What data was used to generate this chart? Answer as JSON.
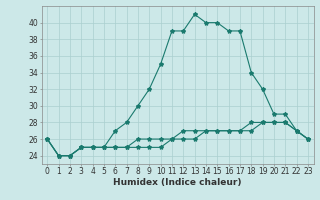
{
  "xlabel": "Humidex (Indice chaleur)",
  "x": [
    0,
    1,
    2,
    3,
    4,
    5,
    6,
    7,
    8,
    9,
    10,
    11,
    12,
    13,
    14,
    15,
    16,
    17,
    18,
    19,
    20,
    21,
    22,
    23
  ],
  "line1": [
    26,
    24,
    24,
    25,
    25,
    25,
    27,
    28,
    30,
    32,
    35,
    39,
    39,
    41,
    40,
    40,
    39,
    39,
    34,
    32,
    29,
    29,
    27,
    26
  ],
  "line2": [
    26,
    24,
    24,
    25,
    25,
    25,
    25,
    25,
    26,
    26,
    26,
    26,
    27,
    27,
    27,
    27,
    27,
    27,
    28,
    28,
    28,
    28,
    27,
    26
  ],
  "line3": [
    26,
    24,
    24,
    25,
    25,
    25,
    25,
    25,
    25,
    25,
    25,
    26,
    26,
    26,
    27,
    27,
    27,
    27,
    27,
    28,
    28,
    28,
    27,
    26
  ],
  "line_color": "#1a7a6e",
  "bg_color": "#cce8e8",
  "grid_color": "#aacfcf",
  "ylim": [
    23,
    42
  ],
  "yticks": [
    24,
    26,
    28,
    30,
    32,
    34,
    36,
    38,
    40
  ],
  "xtick_labels": [
    "0",
    "1",
    "2",
    "3",
    "4",
    "5",
    "6",
    "7",
    "8",
    "9",
    "10",
    "11",
    "12",
    "13",
    "14",
    "15",
    "16",
    "17",
    "18",
    "19",
    "20",
    "21",
    "22",
    "23"
  ],
  "marker": "*",
  "marker_size": 3,
  "linewidth": 0.8,
  "xlabel_fontsize": 6.5,
  "tick_fontsize": 5.5
}
